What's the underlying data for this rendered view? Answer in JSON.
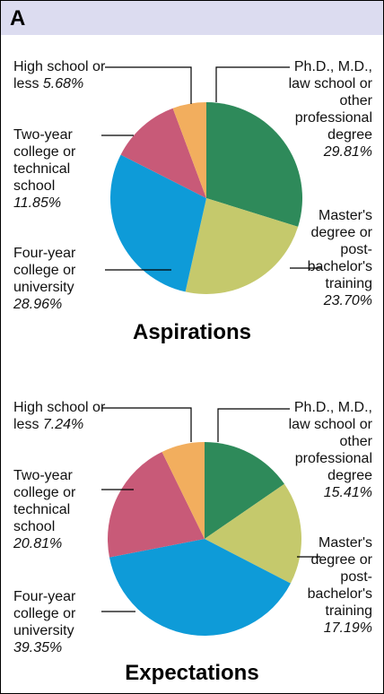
{
  "panel_label": "A",
  "chart_data": [
    {
      "type": "pie",
      "title": "Aspirations",
      "categories": [
        "Ph.D., M.D., law school or other professional degree",
        "Master's degree or post-bachelor's training",
        "Four-year college or university",
        "Two-year college or technical school",
        "High school or less"
      ],
      "values": [
        29.81,
        23.7,
        28.96,
        11.85,
        5.68
      ],
      "value_labels": [
        "29.81%",
        "23.70%",
        "28.96%",
        "11.85%",
        "5.68%"
      ],
      "colors": [
        "#2e8a5a",
        "#c5c96c",
        "#0e9bd8",
        "#c85a78",
        "#f2ae5e"
      ]
    },
    {
      "type": "pie",
      "title": "Expectations",
      "categories": [
        "Ph.D., M.D., law school or other professional degree",
        "Master's degree or post-bachelor's training",
        "Four-year college or university",
        "Two-year college or technical school",
        "High school or less"
      ],
      "values": [
        15.41,
        17.19,
        39.35,
        20.81,
        7.24
      ],
      "value_labels": [
        "15.41%",
        "17.19%",
        "39.35%",
        "20.81%",
        "7.24%"
      ],
      "colors": [
        "#2e8a5a",
        "#c5c96c",
        "#0e9bd8",
        "#c85a78",
        "#f2ae5e"
      ]
    }
  ]
}
